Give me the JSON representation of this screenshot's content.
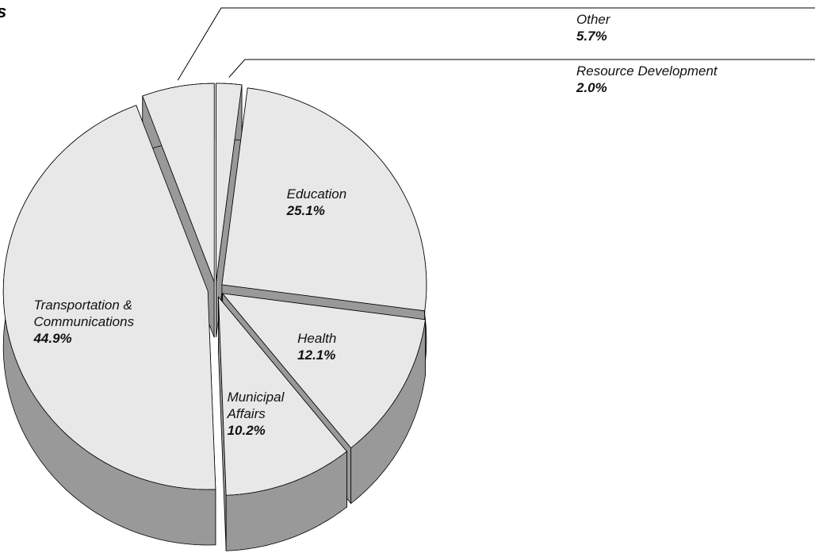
{
  "chart_data": {
    "type": "pie",
    "title": "s",
    "categories": [
      "Resource Development",
      "Education",
      "Health",
      "Municipal Affairs",
      "Transportation & Communications",
      "Other"
    ],
    "values": [
      2,
      25.1,
      12.1,
      10.2,
      44.9,
      5.7
    ],
    "value_labels": [
      "2.0%",
      "25.1%",
      "12.1%",
      "10.2%",
      "44.9%",
      "5.7%"
    ],
    "color": "#e8e8e8",
    "side_color": "#999999"
  }
}
